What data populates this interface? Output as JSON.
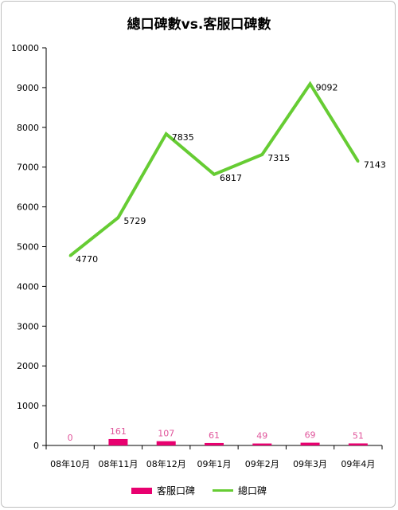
{
  "chart_data": {
    "type": "bar+line",
    "title": "總口碑數vs.客服口碑數",
    "categories": [
      "08年10月",
      "08年11月",
      "08年12月",
      "09年1月",
      "09年2月",
      "09年3月",
      "09年4月"
    ],
    "series": [
      {
        "name": "客服口碑",
        "type": "bar",
        "color": "#e8006f",
        "label_color": "#e0559b",
        "values": [
          0,
          161,
          107,
          61,
          49,
          69,
          51
        ]
      },
      {
        "name": "總口碑",
        "type": "line",
        "color": "#66cc33",
        "values": [
          4770,
          5729,
          7835,
          6817,
          7315,
          9092,
          7143
        ]
      }
    ],
    "ylim": [
      0,
      10000
    ],
    "yticks": [
      0,
      1000,
      2000,
      3000,
      4000,
      5000,
      6000,
      7000,
      8000,
      9000,
      10000
    ],
    "grid": false,
    "legend": "bottom"
  }
}
